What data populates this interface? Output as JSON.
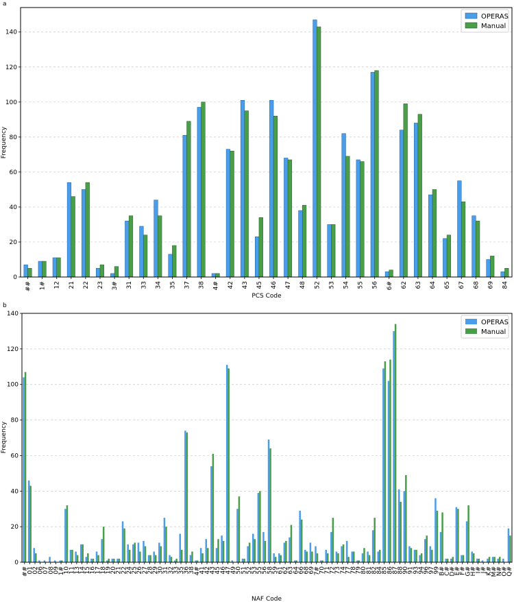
{
  "chart_data": [
    {
      "panel": "a",
      "type": "bar",
      "xlabel": "PCS Code",
      "ylabel": "Frequency",
      "ylim": [
        0,
        154
      ],
      "yticks": [
        0,
        20,
        40,
        60,
        80,
        100,
        120,
        140
      ],
      "grid": "y-dashed",
      "legend": "top-right",
      "categories": [
        "##",
        "1#",
        "12",
        "21",
        "22",
        "23",
        "3#",
        "31",
        "33",
        "34",
        "35",
        "37",
        "38",
        "4#",
        "42",
        "43",
        "45",
        "46",
        "47",
        "48",
        "52",
        "53",
        "54",
        "55",
        "56",
        "6#",
        "62",
        "63",
        "64",
        "65",
        "67",
        "68",
        "69",
        "84"
      ],
      "series": [
        {
          "name": "OPERAS",
          "color": "#4a9de8",
          "values": [
            7,
            9,
            11,
            54,
            50,
            5,
            2,
            32,
            29,
            44,
            13,
            81,
            97,
            2,
            73,
            101,
            23,
            101,
            68,
            38,
            147,
            30,
            82,
            67,
            117,
            3,
            84,
            88,
            47,
            22,
            55,
            35,
            10,
            3
          ]
        },
        {
          "name": "Manual",
          "color": "#4a9e4a",
          "values": [
            5,
            9,
            11,
            46,
            54,
            7,
            6,
            35,
            24,
            35,
            18,
            89,
            100,
            2,
            72,
            95,
            34,
            92,
            67,
            41,
            143,
            30,
            69,
            66,
            118,
            4,
            99,
            93,
            50,
            24,
            43,
            32,
            12,
            5
          ]
        }
      ]
    },
    {
      "panel": "b",
      "type": "bar",
      "xlabel": "NAF Code",
      "ylabel": "Frequency",
      "ylim": [
        0,
        140
      ],
      "yticks": [
        0,
        20,
        40,
        60,
        80,
        100,
        120,
        140
      ],
      "grid": "y-dashed",
      "legend": "top-right",
      "categories": [
        "##",
        "01",
        "02",
        "06",
        "07",
        "08",
        "09",
        "1#",
        "10",
        "11",
        "13",
        "14",
        "15",
        "16",
        "17",
        "18",
        "19",
        "20",
        "21",
        "22",
        "24",
        "25",
        "26",
        "27",
        "28",
        "29",
        "30",
        "31",
        "32",
        "33",
        "35",
        "36",
        "38",
        "4#",
        "41",
        "42",
        "43",
        "45",
        "46",
        "47",
        "49",
        "50",
        "51",
        "52",
        "53",
        "55",
        "56",
        "58",
        "59",
        "61",
        "62",
        "63",
        "64",
        "66",
        "68",
        "69",
        "7#",
        "70",
        "71",
        "72",
        "73",
        "74",
        "77",
        "78",
        "79",
        "80",
        "81",
        "82",
        "84",
        "85",
        "86",
        "87",
        "88",
        "90",
        "91",
        "93",
        "94",
        "96",
        "97",
        "99",
        "B#",
        "C#",
        "D#",
        "E#",
        "F#",
        "G#",
        "H#",
        "I#",
        "J#",
        "K#",
        "M#",
        "N#",
        "O#",
        "Q#"
      ],
      "series": [
        {
          "name": "OPERAS",
          "color": "#4a9de8",
          "values": [
            104,
            46,
            8,
            1,
            1,
            3,
            1,
            1,
            30,
            7,
            6,
            10,
            3,
            2,
            6,
            13,
            1,
            2,
            2,
            23,
            10,
            10,
            11,
            12,
            4,
            6,
            11,
            25,
            4,
            1,
            16,
            74,
            4,
            1,
            8,
            13,
            54,
            8,
            15,
            111,
            1,
            30,
            2,
            9,
            16,
            39,
            17,
            69,
            5,
            5,
            11,
            14,
            1,
            29,
            7,
            11,
            9,
            1,
            7,
            17,
            6,
            9,
            12,
            6,
            1,
            5,
            6,
            18,
            6,
            109,
            102,
            130,
            41,
            40,
            9,
            7,
            4,
            13,
            9,
            36,
            17,
            2,
            2,
            31,
            4,
            23,
            6,
            2,
            1,
            2,
            3,
            2,
            2,
            19
          ],
          "values2": []
        },
        {
          "name": "Manual",
          "color": "#4a9e4a",
          "values": [
            107,
            43,
            5,
            0,
            0,
            0,
            0,
            1,
            32,
            7,
            4,
            10,
            5,
            2,
            4,
            20,
            2,
            2,
            2,
            19,
            7,
            11,
            6,
            9,
            4,
            4,
            9,
            20,
            3,
            2,
            7,
            73,
            6,
            1,
            5,
            8,
            61,
            13,
            12,
            109,
            0,
            37,
            2,
            11,
            13,
            40,
            12,
            64,
            3,
            4,
            12,
            21,
            1,
            24,
            6,
            6,
            5,
            1,
            5,
            25,
            5,
            10,
            3,
            6,
            1,
            8,
            4,
            25,
            7,
            113,
            114,
            134,
            34,
            49,
            8,
            7,
            5,
            15,
            7,
            29,
            28,
            2,
            3,
            30,
            4,
            32,
            5,
            2,
            0,
            3,
            3,
            3,
            0,
            15
          ]
        }
      ]
    }
  ]
}
